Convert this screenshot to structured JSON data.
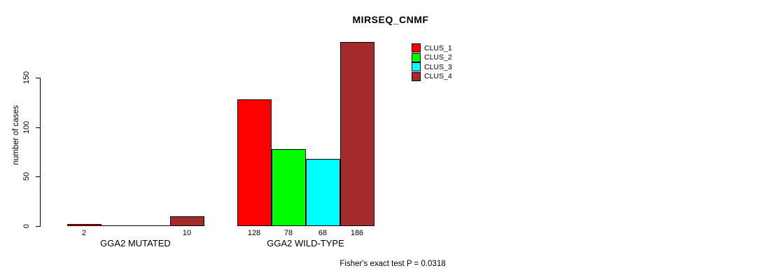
{
  "chart_data": {
    "type": "bar",
    "title": "MIRSEQ_CNMF",
    "ylabel": "number of cases",
    "xlabel": "",
    "ylim": [
      0,
      150
    ],
    "yticks": [
      0,
      50,
      100,
      150
    ],
    "grid": false,
    "legend_position": "top-right",
    "annotation": "Fisher's exact test P = 0.0318",
    "series": [
      {
        "name": "CLUS_1",
        "color": "#FF0000"
      },
      {
        "name": "CLUS_2",
        "color": "#00FF00"
      },
      {
        "name": "CLUS_3",
        "color": "#00FFFF"
      },
      {
        "name": "CLUS_4",
        "color": "#A52A2A"
      }
    ],
    "categories": [
      "GGA2 MUTATED",
      "GGA2 WILD-TYPE"
    ],
    "groups": [
      {
        "label": "GGA2 MUTATED",
        "values": [
          2,
          0,
          0,
          10
        ],
        "value_labels": [
          "2",
          "",
          "",
          "10"
        ]
      },
      {
        "label": "GGA2 WILD-TYPE",
        "values": [
          128,
          78,
          68,
          186
        ],
        "value_labels": [
          "128",
          "78",
          "68",
          "186"
        ]
      }
    ]
  }
}
